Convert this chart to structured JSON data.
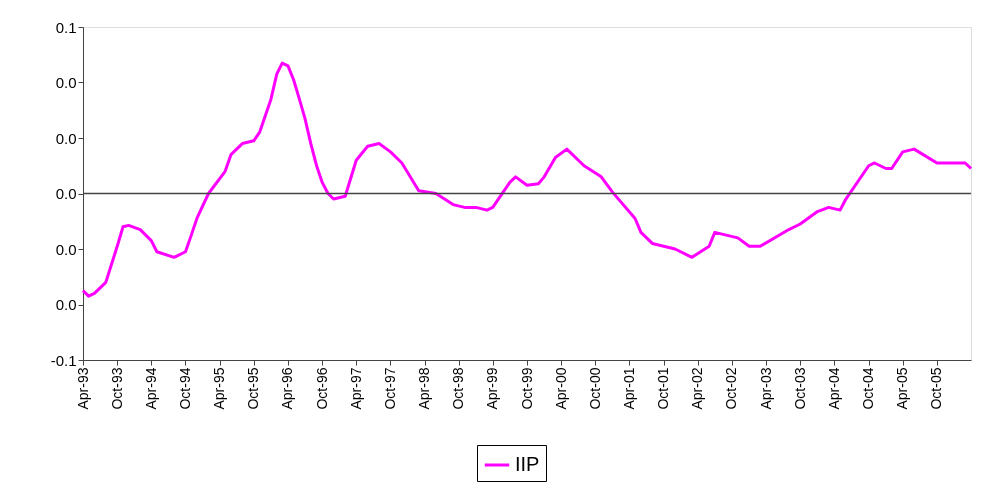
{
  "chart_data": {
    "type": "line",
    "x": [
      "1993-04",
      "1993-05",
      "1993-06",
      "1993-08",
      "1993-10",
      "1993-11",
      "1993-12",
      "1994-02",
      "1994-04",
      "1994-05",
      "1994-08",
      "1994-10",
      "1994-11",
      "1994-12",
      "1995-02",
      "1995-05",
      "1995-06",
      "1995-08",
      "1995-10",
      "1995-11",
      "1996-01",
      "1996-02",
      "1996-03",
      "1996-04",
      "1996-05",
      "1996-06",
      "1996-07",
      "1996-08",
      "1996-09",
      "1996-10",
      "1996-11",
      "1996-12",
      "1997-02",
      "1997-04",
      "1997-06",
      "1997-08",
      "1997-10",
      "1997-12",
      "1998-03",
      "1998-06",
      "1998-09",
      "1998-11",
      "1999-01",
      "1999-03",
      "1999-04",
      "1999-07",
      "1999-08",
      "1999-10",
      "1999-12",
      "2000-01",
      "2000-03",
      "2000-05",
      "2000-08",
      "2000-11",
      "2001-01",
      "2001-05",
      "2001-06",
      "2001-08",
      "2001-12",
      "2002-03",
      "2002-06",
      "2002-07",
      "2002-11",
      "2003-01",
      "2003-03",
      "2003-08",
      "2003-10",
      "2004-01",
      "2004-03",
      "2004-05",
      "2004-06",
      "2004-10",
      "2004-11",
      "2005-01",
      "2005-02",
      "2005-04",
      "2005-06",
      "2005-10",
      "2006-03",
      "2006-04"
    ],
    "series": [
      {
        "name": "IIP",
        "color": "#ff00ff",
        "values": [
          -0.035,
          -0.037,
          -0.036,
          -0.032,
          -0.019,
          -0.012,
          -0.0115,
          -0.013,
          -0.017,
          -0.021,
          -0.023,
          -0.021,
          -0.015,
          -0.009,
          0.0,
          0.008,
          0.014,
          0.018,
          0.019,
          0.022,
          0.034,
          0.043,
          0.047,
          0.046,
          0.041,
          0.034,
          0.027,
          0.018,
          0.01,
          0.004,
          0.0,
          -0.002,
          -0.001,
          0.012,
          0.017,
          0.018,
          0.015,
          0.011,
          0.001,
          0.0,
          -0.004,
          -0.005,
          -0.005,
          -0.006,
          -0.005,
          0.004,
          0.006,
          0.003,
          0.0035,
          0.006,
          0.013,
          0.016,
          0.01,
          0.006,
          0.0004,
          -0.009,
          -0.014,
          -0.018,
          -0.02,
          -0.023,
          -0.019,
          -0.014,
          -0.016,
          -0.019,
          -0.019,
          -0.013,
          -0.011,
          -0.0065,
          -0.005,
          -0.006,
          -0.002,
          0.01,
          0.011,
          0.009,
          0.009,
          0.015,
          0.016,
          0.011,
          0.011,
          0.009
        ]
      }
    ],
    "xlim": [
      "1993-04",
      "2006-04"
    ],
    "xticks": [
      {
        "value": "1993-04",
        "label": "Apr-93"
      },
      {
        "value": "1993-10",
        "label": "Oct-93"
      },
      {
        "value": "1994-04",
        "label": "Apr-94"
      },
      {
        "value": "1994-10",
        "label": "Oct-94"
      },
      {
        "value": "1995-04",
        "label": "Apr-95"
      },
      {
        "value": "1995-10",
        "label": "Oct-95"
      },
      {
        "value": "1996-04",
        "label": "Apr-96"
      },
      {
        "value": "1996-10",
        "label": "Oct-96"
      },
      {
        "value": "1997-04",
        "label": "Apr-97"
      },
      {
        "value": "1997-10",
        "label": "Oct-97"
      },
      {
        "value": "1998-04",
        "label": "Apr-98"
      },
      {
        "value": "1998-10",
        "label": "Oct-98"
      },
      {
        "value": "1999-04",
        "label": "Apr-99"
      },
      {
        "value": "1999-10",
        "label": "Oct-99"
      },
      {
        "value": "2000-04",
        "label": "Apr-00"
      },
      {
        "value": "2000-10",
        "label": "Oct-00"
      },
      {
        "value": "2001-04",
        "label": "Apr-01"
      },
      {
        "value": "2001-10",
        "label": "Oct-01"
      },
      {
        "value": "2002-04",
        "label": "Apr-02"
      },
      {
        "value": "2002-10",
        "label": "Oct-02"
      },
      {
        "value": "2003-04",
        "label": "Apr-03"
      },
      {
        "value": "2003-10",
        "label": "Oct-03"
      },
      {
        "value": "2004-04",
        "label": "Apr-04"
      },
      {
        "value": "2004-10",
        "label": "Oct-04"
      },
      {
        "value": "2005-04",
        "label": "Apr-05"
      },
      {
        "value": "2005-10",
        "label": "Oct-05"
      }
    ],
    "ylim": [
      -0.06,
      0.06
    ],
    "yticks": [
      {
        "value": -0.06,
        "label": "-0.1"
      },
      {
        "value": -0.04,
        "label": "0.0"
      },
      {
        "value": -0.02,
        "label": "0.0"
      },
      {
        "value": 0,
        "label": "0.0"
      },
      {
        "value": 0.02,
        "label": "0.0"
      },
      {
        "value": 0.04,
        "label": "0.0"
      },
      {
        "value": 0.06,
        "label": "0.1"
      }
    ],
    "ref_lines": [
      {
        "axis": "y",
        "value": 0
      }
    ],
    "grid": false,
    "legend": "bottom",
    "marker": "none",
    "line_style": "solid"
  }
}
